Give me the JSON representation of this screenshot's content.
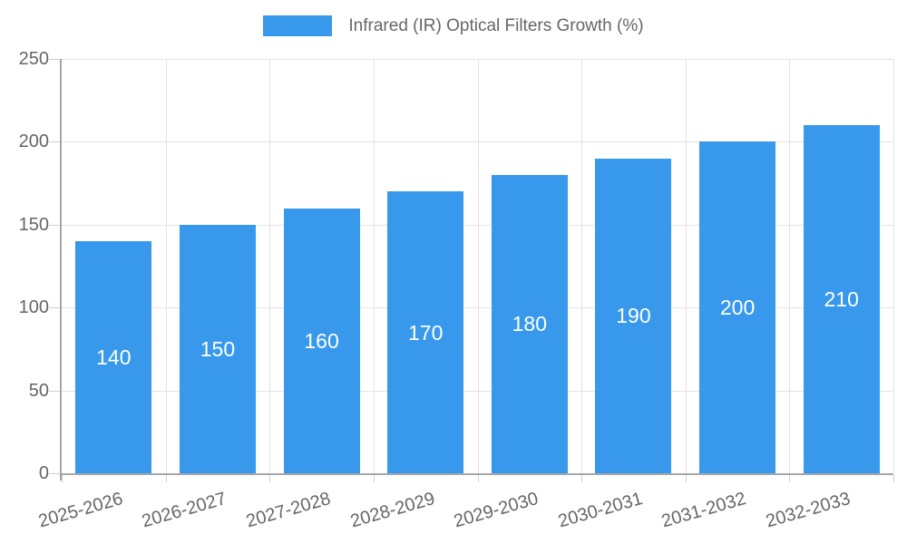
{
  "legend": {
    "label": "Infrared (IR) Optical Filters Growth (%)"
  },
  "chart_data": {
    "type": "bar",
    "title": "Infrared (IR) Optical Filters Growth (%)",
    "categories": [
      "2025-2026",
      "2026-2027",
      "2027-2028",
      "2028-2029",
      "2029-2030",
      "2030-2031",
      "2031-2032",
      "2032-2033"
    ],
    "values": [
      140,
      150,
      160,
      170,
      180,
      190,
      200,
      210
    ],
    "series": [
      {
        "name": "Infrared (IR) Optical Filters Growth (%)",
        "values": [
          140,
          150,
          160,
          170,
          180,
          190,
          200,
          210
        ]
      }
    ],
    "xlabel": "",
    "ylabel": "",
    "ylim": [
      0,
      250
    ],
    "yticks": [
      0,
      50,
      100,
      150,
      200,
      250
    ],
    "grid": true,
    "legend_position": "top",
    "bar_value_labels": true,
    "colors": {
      "bar": "#3899ec",
      "bar_label": "#ffffff",
      "axis_text": "#666666",
      "grid_line": "#e3e3e3",
      "tick_line": "#cfcfcf",
      "axis_line": "#a6a6a6",
      "background": "#ffffff"
    }
  }
}
